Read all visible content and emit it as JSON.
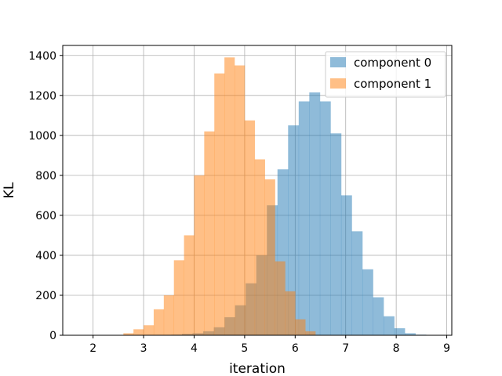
{
  "chart_data": {
    "type": "bar",
    "xlabel": "iteration",
    "ylabel": "KL",
    "xlim": [
      1.4,
      9.1
    ],
    "ylim": [
      0,
      1450
    ],
    "grid": true,
    "legend_position": "top-right",
    "xticks": [
      2,
      3,
      4,
      5,
      6,
      7,
      8,
      9
    ],
    "yticks": [
      0,
      200,
      400,
      600,
      800,
      1000,
      1200,
      1400
    ],
    "series": [
      {
        "name": "component 0",
        "color": "#1f77b4",
        "opacity": 0.5,
        "bin_edges": [
          3.55,
          3.76,
          3.97,
          4.18,
          4.39,
          4.6,
          4.81,
          5.02,
          5.23,
          5.44,
          5.65,
          5.86,
          6.07,
          6.28,
          6.49,
          6.7,
          6.91,
          7.12,
          7.33,
          7.54,
          7.75,
          7.96,
          8.17,
          8.38,
          8.59
        ],
        "values": [
          3,
          7,
          10,
          20,
          40,
          90,
          150,
          260,
          400,
          650,
          830,
          1050,
          1170,
          1215,
          1170,
          1010,
          700,
          520,
          330,
          190,
          95,
          35,
          10,
          3
        ]
      },
      {
        "name": "component 1",
        "color": "#ff7f0e",
        "opacity": 0.5,
        "bin_edges": [
          2.6,
          2.8,
          3.0,
          3.2,
          3.4,
          3.6,
          3.8,
          4.0,
          4.2,
          4.4,
          4.6,
          4.8,
          5.0,
          5.2,
          5.4,
          5.6,
          5.8,
          6.0,
          6.2,
          6.4
        ],
        "values": [
          10,
          30,
          50,
          130,
          200,
          375,
          500,
          800,
          1020,
          1310,
          1390,
          1350,
          1075,
          880,
          780,
          370,
          220,
          80,
          20
        ]
      }
    ]
  }
}
